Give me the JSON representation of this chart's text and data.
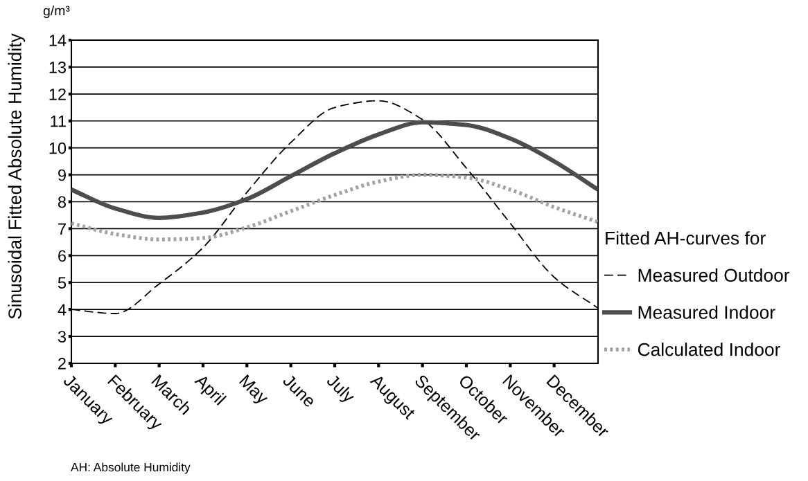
{
  "chart_data": {
    "type": "line",
    "ylabel": "Sinusoidal Fitted Absolute Humidity",
    "legend_title": "Fitted AH-curves for",
    "annotations": [
      "g/m³",
      "AH: Absolute Humidity"
    ],
    "categories": [
      "January",
      "February",
      "March",
      "April",
      "May",
      "June",
      "July",
      "August",
      "September",
      "October",
      "November",
      "December",
      null
    ],
    "ylim": [
      2,
      14
    ],
    "yticks": [
      2,
      3,
      4,
      5,
      6,
      7,
      8,
      9,
      10,
      11,
      12,
      13,
      14
    ],
    "grid": "y",
    "legend": "right",
    "series": [
      {
        "name": "Measured Outdoor",
        "color": "#000000",
        "line_style": "dashed",
        "values": [
          4.0,
          3.85,
          4.95,
          6.3,
          8.35,
          10.2,
          11.5,
          11.75,
          11.05,
          9.25,
          7.2,
          5.2,
          4.05
        ]
      },
      {
        "name": "Measured Indoor",
        "color": "#4d4d4d",
        "line_style": "solid",
        "values": [
          8.45,
          7.75,
          7.4,
          7.6,
          8.1,
          8.95,
          9.8,
          10.5,
          10.95,
          10.85,
          10.35,
          9.5,
          8.45
        ]
      },
      {
        "name": "Calculated Indoor",
        "color": "#a3a3a3",
        "line_style": "dotted",
        "values": [
          7.2,
          6.8,
          6.6,
          6.65,
          7.05,
          7.65,
          8.25,
          8.75,
          9.0,
          8.9,
          8.45,
          7.8,
          7.25
        ]
      }
    ]
  }
}
